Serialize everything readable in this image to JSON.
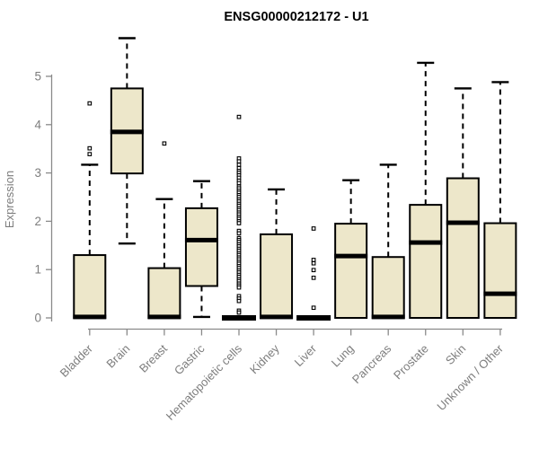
{
  "colors": {
    "background": "#ffffff",
    "box_fill": "#ede7ca",
    "box_stroke": "#000000",
    "median": "#000000",
    "whisker": "#000000",
    "outlier_stroke": "#000000",
    "axis_line": "#8a8a8a",
    "axis_text": "#7d7d7d",
    "title_text": "#000000"
  },
  "chart_data": {
    "type": "boxplot",
    "title": "ENSG00000212172 - U1",
    "ylabel": "Expression",
    "xlabel": "",
    "ylim": [
      0,
      5
    ],
    "yticks": [
      0,
      1,
      2,
      3,
      4,
      5
    ],
    "grid": false,
    "legend": "none",
    "categories": [
      "Bladder",
      "Brain",
      "Breast",
      "Gastric",
      "Hematopoietic cells",
      "Kidney",
      "Liver",
      "Lung",
      "Pancreas",
      "Prostate",
      "Skin",
      "Unknown / Other"
    ],
    "series": [
      {
        "name": "Bladder",
        "whislo": 0,
        "q1": 0,
        "med": 0.02,
        "q3": 1.3,
        "whishi": 3.17,
        "outliers": [
          3.39,
          3.51,
          4.44
        ]
      },
      {
        "name": "Brain",
        "whislo": 1.54,
        "q1": 2.99,
        "med": 3.85,
        "q3": 4.75,
        "whishi": 5.79,
        "outliers": []
      },
      {
        "name": "Breast",
        "whislo": 0,
        "q1": 0,
        "med": 0.02,
        "q3": 1.03,
        "whishi": 2.46,
        "outliers": [
          3.61
        ]
      },
      {
        "name": "Gastric",
        "whislo": 0.02,
        "q1": 0.66,
        "med": 1.61,
        "q3": 2.27,
        "whishi": 2.83,
        "outliers": []
      },
      {
        "name": "Hematopoietic cells",
        "whislo": 0,
        "q1": 0,
        "med": 0,
        "q3": 0,
        "whishi": 0,
        "outliers": [
          4.16,
          3.3,
          3.24,
          3.17,
          3.1,
          3.04,
          3.0,
          2.95,
          2.9,
          2.84,
          2.79,
          2.72,
          2.68,
          2.63,
          2.59,
          2.54,
          2.5,
          2.45,
          2.41,
          2.36,
          2.32,
          2.27,
          2.23,
          2.18,
          2.14,
          2.09,
          2.05,
          2.0,
          1.96,
          1.8,
          1.75,
          1.65,
          1.61,
          1.57,
          1.52,
          1.48,
          1.43,
          1.39,
          1.34,
          1.3,
          1.25,
          1.21,
          1.16,
          1.12,
          1.07,
          1.03,
          0.98,
          0.94,
          0.89,
          0.85,
          0.8,
          0.76,
          0.71,
          0.67,
          0.63,
          0.45,
          0.4,
          0.35,
          0.15,
          0.11
        ]
      },
      {
        "name": "Kidney",
        "whislo": 0,
        "q1": 0,
        "med": 0.02,
        "q3": 1.73,
        "whishi": 2.66,
        "outliers": []
      },
      {
        "name": "Liver",
        "whislo": 0,
        "q1": 0,
        "med": 0,
        "q3": 0,
        "whishi": 0,
        "outliers": [
          0.21,
          0.83,
          0.99,
          1.13,
          1.2,
          1.85
        ]
      },
      {
        "name": "Lung",
        "whislo": 0,
        "q1": 0,
        "med": 1.28,
        "q3": 1.95,
        "whishi": 2.85,
        "outliers": []
      },
      {
        "name": "Pancreas",
        "whislo": 0,
        "q1": 0,
        "med": 0.02,
        "q3": 1.26,
        "whishi": 3.17,
        "outliers": []
      },
      {
        "name": "Prostate",
        "whislo": 0,
        "q1": 0,
        "med": 1.56,
        "q3": 2.34,
        "whishi": 5.28,
        "outliers": []
      },
      {
        "name": "Skin",
        "whislo": 0,
        "q1": 0,
        "med": 1.97,
        "q3": 2.89,
        "whishi": 4.75,
        "outliers": []
      },
      {
        "name": "Unknown / Other",
        "whislo": 0,
        "q1": 0,
        "med": 0.5,
        "q3": 1.96,
        "whishi": 4.88,
        "outliers": []
      }
    ]
  }
}
